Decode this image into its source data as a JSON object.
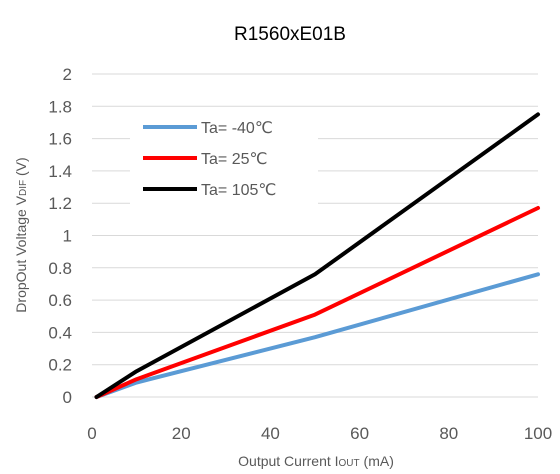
{
  "chart_data": {
    "type": "line",
    "title": "R1560xE01B",
    "xlabel": {
      "main": "Output Current I",
      "sub": "OUT",
      "tail": " (mA)"
    },
    "ylabel": {
      "main": "DropOut Voltage V",
      "sub": "DIF",
      "tail": " (V)"
    },
    "xlim": [
      0,
      100
    ],
    "ylim": [
      0,
      2
    ],
    "x_ticks": [
      0,
      20,
      40,
      60,
      80,
      100
    ],
    "y_ticks": [
      0,
      0.2,
      0.4,
      0.6,
      0.8,
      1,
      1.2,
      1.4,
      1.6,
      1.8,
      2
    ],
    "grid": "horizontal",
    "legend_position": "top-left",
    "series": [
      {
        "name": "Ta= -40℃",
        "color": "#5b9bd5",
        "points": [
          [
            1,
            0
          ],
          [
            10,
            0.09
          ],
          [
            50,
            0.37
          ],
          [
            100,
            0.76
          ]
        ]
      },
      {
        "name": "Ta= 25℃",
        "color": "#ff0000",
        "points": [
          [
            1,
            0
          ],
          [
            10,
            0.11
          ],
          [
            50,
            0.51
          ],
          [
            100,
            1.17
          ]
        ]
      },
      {
        "name": "Ta= 105℃",
        "color": "#000000",
        "points": [
          [
            1,
            0
          ],
          [
            10,
            0.16
          ],
          [
            50,
            0.76
          ],
          [
            100,
            1.75
          ]
        ]
      }
    ]
  }
}
